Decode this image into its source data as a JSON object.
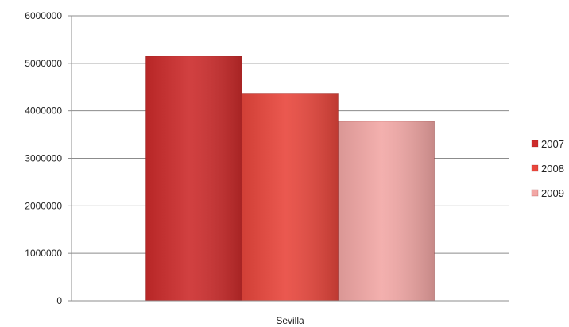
{
  "chart_data": {
    "type": "bar",
    "categories": [
      "Sevilla"
    ],
    "series": [
      {
        "name": "2007",
        "values": [
          5150000
        ],
        "color": "#cc2b2b"
      },
      {
        "name": "2008",
        "values": [
          4370000
        ],
        "color": "#e8463c"
      },
      {
        "name": "2009",
        "values": [
          3780000
        ],
        "color": "#f2a7a5"
      }
    ],
    "ylim": [
      0,
      6000000
    ],
    "yticks": [
      0,
      1000000,
      2000000,
      3000000,
      4000000,
      5000000,
      6000000
    ],
    "grid": true,
    "legend_position": "right",
    "title": "",
    "xlabel": "",
    "ylabel": ""
  }
}
